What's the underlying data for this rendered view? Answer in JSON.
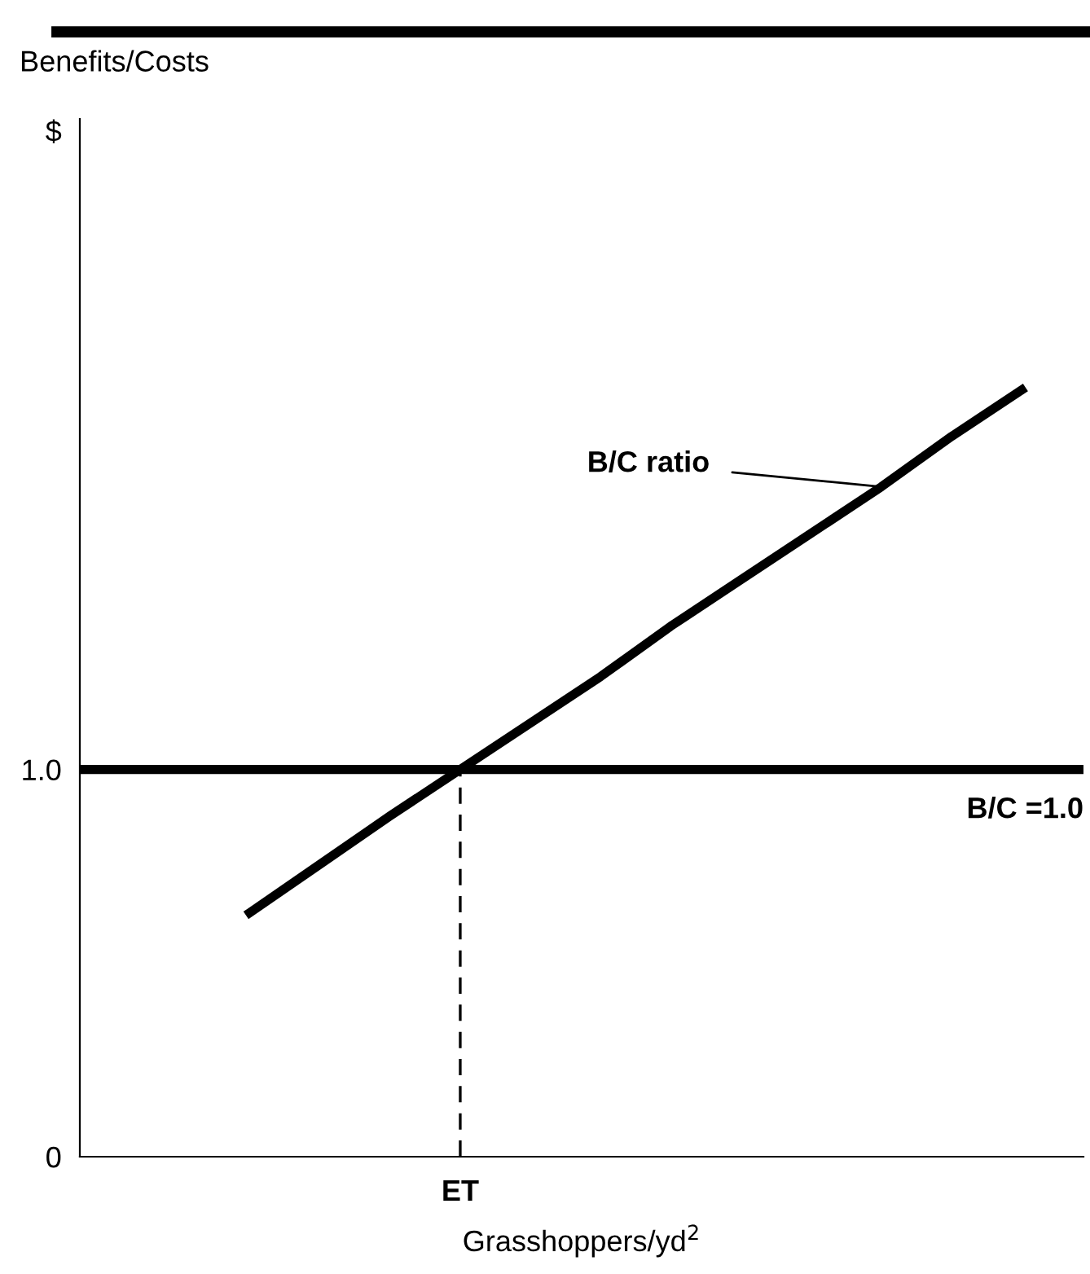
{
  "chart_data": {
    "type": "line",
    "ylabel": "Benefits/Costs",
    "xlabel": "Grasshoppers/yd$^{2}$",
    "categories": [
      null,
      null,
      null,
      null,
      null,
      null,
      null,
      null,
      null,
      null,
      null,
      null
    ],
    "series": [
      {
        "values": [
          0.63,
          0.755,
          0.88,
          1.0,
          1.12,
          1.24,
          1.37,
          1.49,
          1.61,
          1.73,
          1.86,
          1.98
        ],
        "color": "#000000"
      }
    ],
    "tick_labels": "y",
    "ylim": [
      0,
      2.68
    ],
    "yticks": [
      {
        "value": 0,
        "label": "0"
      },
      {
        "value": 1.0,
        "label": "1.0"
      },
      {
        "value": 2.65,
        "label": "$"
      }
    ],
    "ref_lines": [
      {
        "axis": "y",
        "value": 1.0,
        "label": "B/C =1.0",
        "color": "#000000",
        "line_style": "solid"
      },
      {
        "axis": "x",
        "label": "ET",
        "color": "#000000",
        "line_style": "dashed"
      }
    ],
    "annotations": [
      "B/C ratio"
    ],
    "grid": false,
    "legend": false,
    "marker": "none",
    "line_style": "solid"
  }
}
